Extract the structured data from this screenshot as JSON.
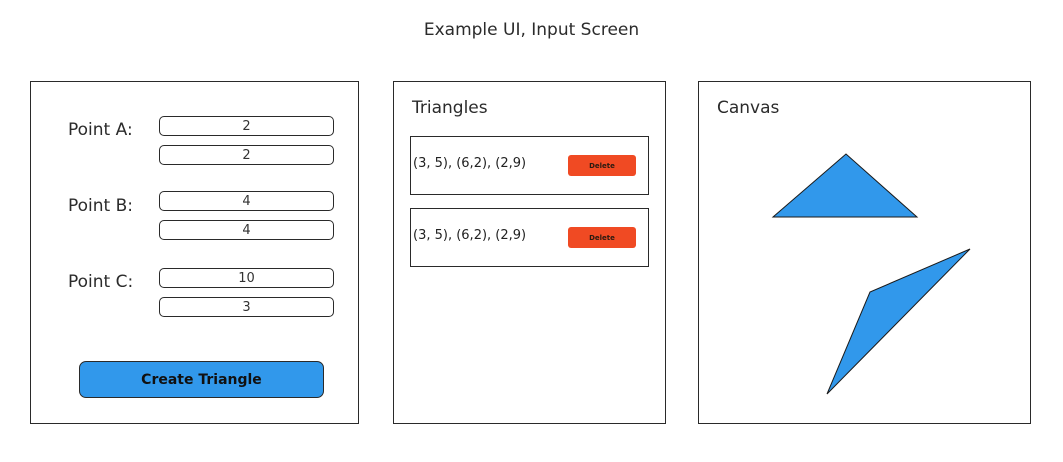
{
  "page": {
    "title": "Example UI, Input Screen"
  },
  "input_panel": {
    "points": [
      {
        "label": "Point A:",
        "x": "2",
        "y": "2"
      },
      {
        "label": "Point B:",
        "x": "4",
        "y": "4"
      },
      {
        "label": "Point C:",
        "x": "10",
        "y": "3"
      }
    ],
    "create_label": "Create Triangle"
  },
  "triangles_panel": {
    "title": "Triangles",
    "items": [
      {
        "label": "(3, 5), (6,2), (2,9)",
        "delete_label": "Delete"
      },
      {
        "label": "(3, 5), (6,2), (2,9)",
        "delete_label": "Delete"
      }
    ]
  },
  "canvas_panel": {
    "title": "Canvas"
  },
  "colors": {
    "accent": "#3198eb",
    "delete": "#f04a23",
    "border": "#2a2a2a"
  }
}
